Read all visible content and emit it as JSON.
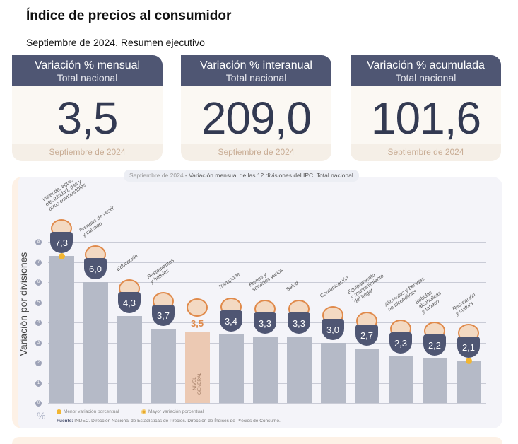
{
  "header": {
    "title": "Índice de precios al consumidor",
    "subtitle": "Septiembre de 2024. Resumen ejecutivo"
  },
  "cards": [
    {
      "title": "Variación % mensual",
      "subtitle": "Total nacional",
      "value": "3,5",
      "period": "Septiembre de 2024"
    },
    {
      "title": "Variación % interanual",
      "subtitle": "Total nacional",
      "value": "209,0",
      "period": "Septiembre de 2024"
    },
    {
      "title": "Variación % acumulada",
      "subtitle": "Total nacional",
      "value": "101,6",
      "period": "Septiembre de 2024"
    }
  ],
  "chart_data": {
    "type": "bar",
    "title_period": "Septiembre de 2024",
    "title": " - Variación mensual de las 12 divisiones del IPC. Total nacional",
    "ylabel": "Variación por divisiones",
    "yunit": "%",
    "ylim": [
      0,
      8
    ],
    "yticks": [
      "0",
      "1",
      "2",
      "3",
      "4",
      "5",
      "6",
      "7",
      "8"
    ],
    "grid": true,
    "categories": [
      "Vivienda, agua,\nelectricidad, gas y\notros combustibles",
      "Prendas de vestir\ny calzado",
      "Educación",
      "Restaurantes\ny hoteles",
      "NIVEL\nGENERAL",
      "Transporte",
      "Bienes y\nservicios varios",
      "Salud",
      "Comunicación",
      "Equipamiento\ny mantenimiento\ndel hogar",
      "Alimentos y bebidas\nno alcohólicas",
      "Bebidas\nalcohólicas\ny tabaco",
      "Recreación\ny cultura"
    ],
    "values": [
      7.3,
      6.0,
      4.3,
      3.7,
      3.5,
      3.4,
      3.3,
      3.3,
      3.0,
      2.7,
      2.3,
      2.2,
      2.1
    ],
    "value_labels": [
      "7,3",
      "6,0",
      "4,3",
      "3,7",
      "3,5",
      "3,4",
      "3,3",
      "3,3",
      "3,0",
      "2,7",
      "2,3",
      "2,2",
      "2,1"
    ],
    "highlight_index": 4,
    "max_index": 0,
    "min_index": 12,
    "colors": {
      "bar": "#b5bac7",
      "general": "#ecc9b3",
      "badge": "#4f5673",
      "marker": "#f2b632",
      "accent": "#e08a4b"
    },
    "legend": {
      "min": "Menor variación porcentual",
      "max": "Mayor variación porcentual"
    },
    "source_label": "Fuente:",
    "source": " INDEC. Dirección Nacional de Estadísticas de Precios. Dirección de Índices de Precios de Consumo."
  }
}
